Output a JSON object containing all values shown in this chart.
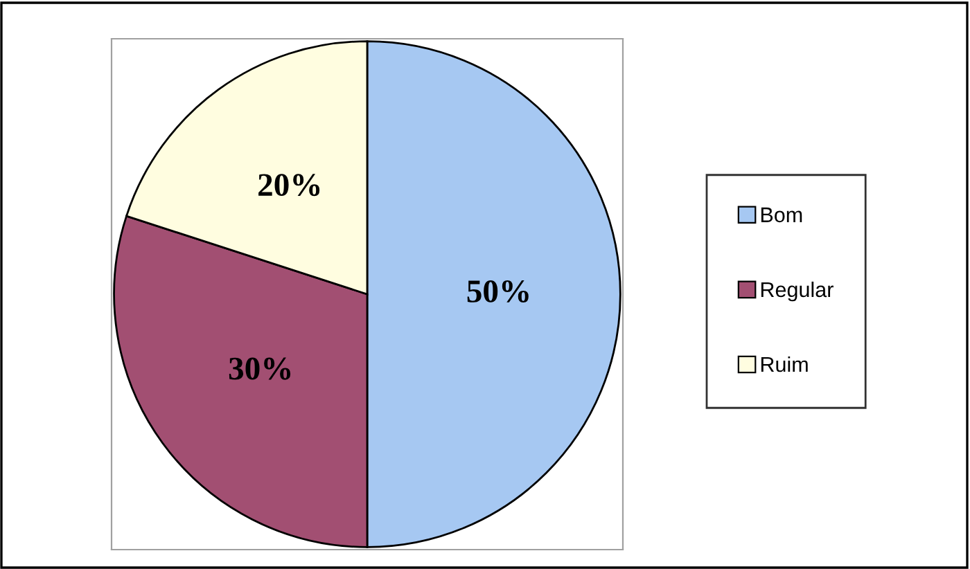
{
  "chart_data": {
    "type": "pie",
    "categories": [
      "Bom",
      "Regular",
      "Ruim"
    ],
    "values": [
      50,
      30,
      20
    ],
    "value_labels": [
      "50%",
      "30%",
      "20%"
    ],
    "colors": [
      "#a6c8f2",
      "#a24f72",
      "#fffde0"
    ],
    "legend": "right"
  }
}
